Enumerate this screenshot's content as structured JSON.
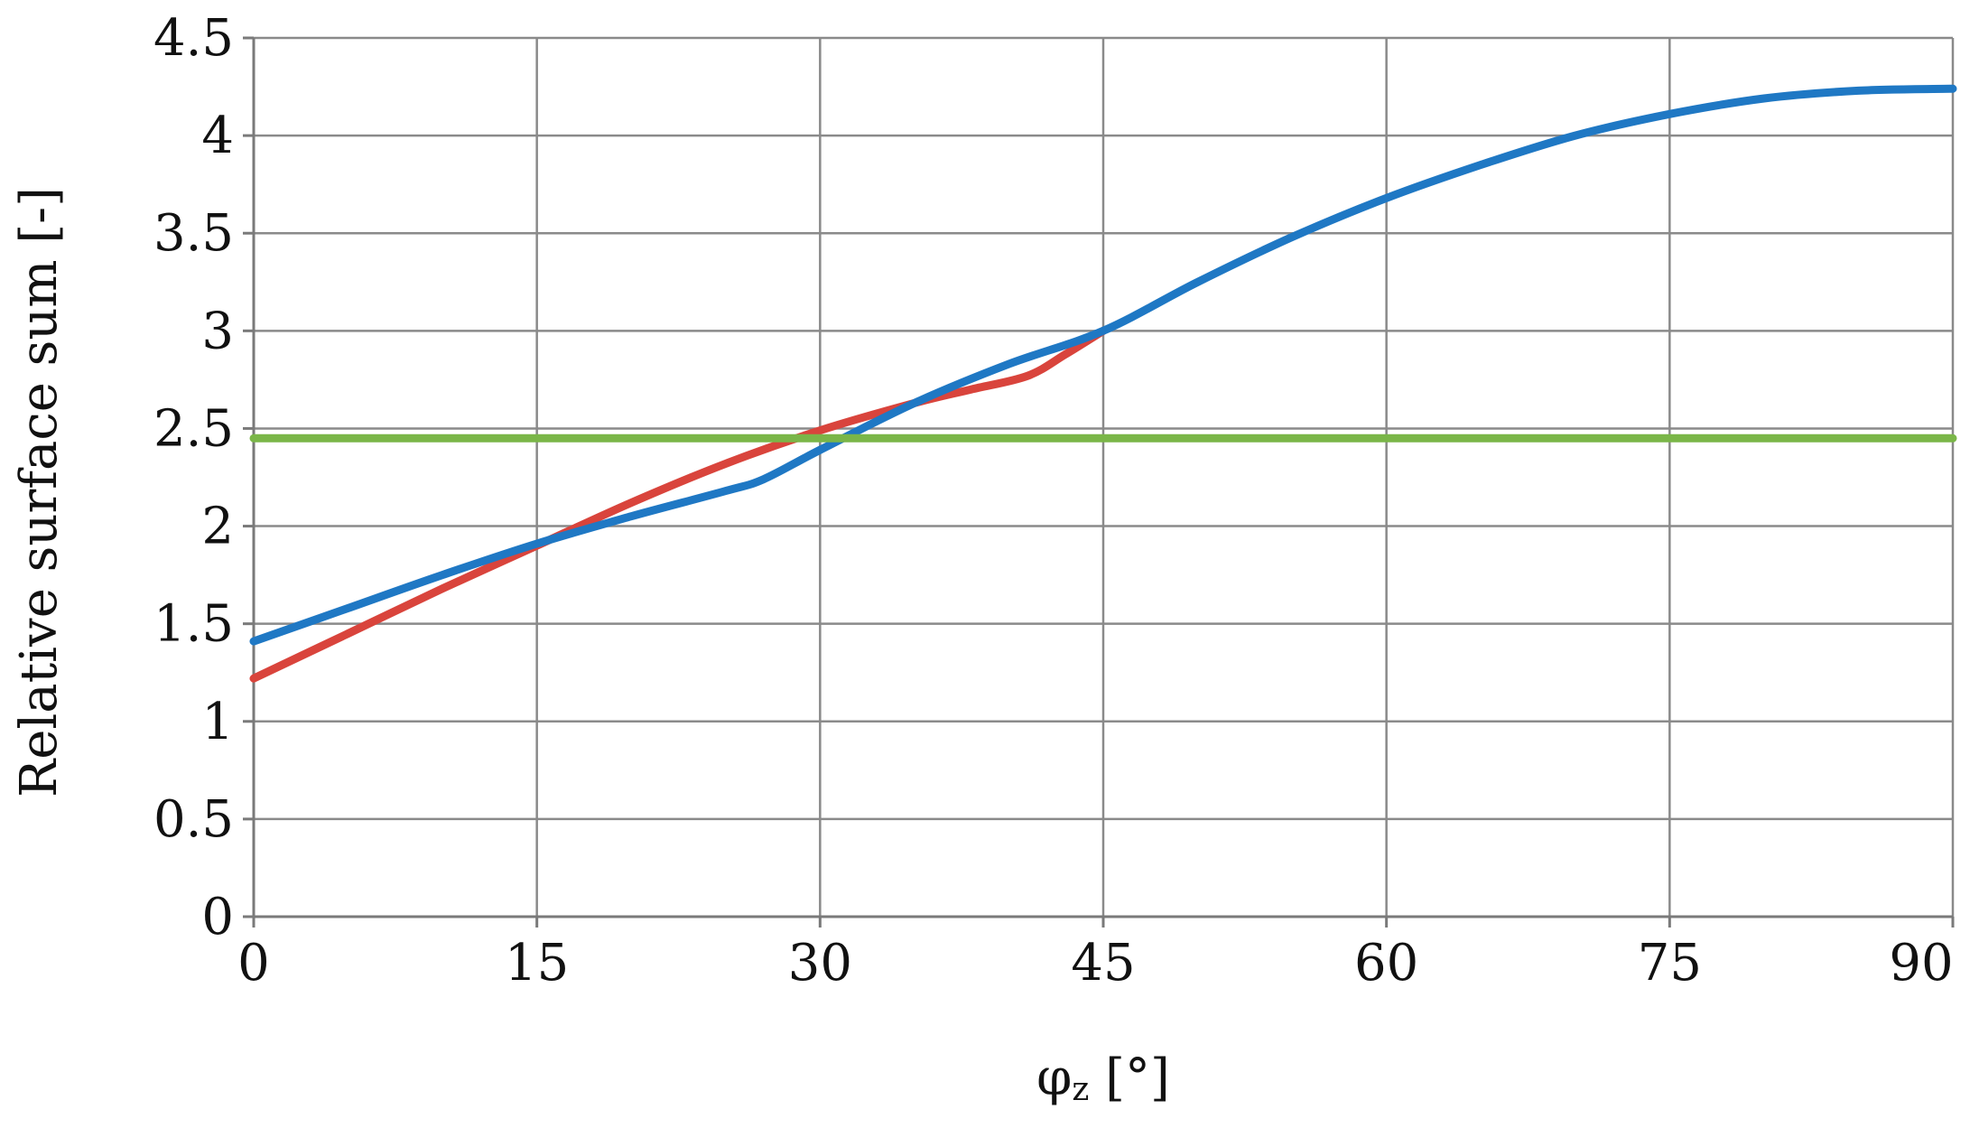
{
  "chart_data": {
    "type": "line",
    "title": "",
    "xlabel_main": "φ",
    "xlabel_sub": "z",
    "xlabel_unit": " [°]",
    "ylabel": "Relative surface sum [-]",
    "xlim": [
      0,
      90
    ],
    "ylim": [
      0,
      4.5
    ],
    "xticks": [
      0,
      15,
      30,
      45,
      60,
      75,
      90
    ],
    "yticks": [
      0,
      0.5,
      1,
      1.5,
      2,
      2.5,
      3,
      3.5,
      4,
      4.5
    ],
    "xtick_labels": [
      "0",
      "15",
      "30",
      "45",
      "60",
      "75",
      "90"
    ],
    "ytick_labels": [
      "0",
      "0.5",
      "1",
      "1.5",
      "2",
      "2.5",
      "3",
      "3.5",
      "4",
      "4.5"
    ],
    "grid": true,
    "legend": "none",
    "series": [
      {
        "color": "#d9443c",
        "x": [
          0,
          5,
          10,
          15,
          20,
          25,
          30,
          35,
          38,
          41,
          43,
          45
        ],
        "y": [
          1.22,
          1.45,
          1.68,
          1.9,
          2.12,
          2.32,
          2.49,
          2.63,
          2.7,
          2.77,
          2.88,
          3.0
        ]
      },
      {
        "color": "#1f78c4",
        "x": [
          0,
          5,
          10,
          15,
          20,
          25,
          27,
          30,
          35,
          40,
          45,
          50,
          55,
          60,
          65,
          70,
          75,
          80,
          85,
          90
        ],
        "y": [
          1.41,
          1.58,
          1.75,
          1.91,
          2.05,
          2.18,
          2.24,
          2.39,
          2.63,
          2.83,
          3.0,
          3.25,
          3.48,
          3.68,
          3.85,
          4.0,
          4.11,
          4.19,
          4.23,
          4.24
        ]
      },
      {
        "color": "#7ab648",
        "x": [
          0,
          90
        ],
        "y": [
          2.45,
          2.45
        ]
      }
    ]
  }
}
